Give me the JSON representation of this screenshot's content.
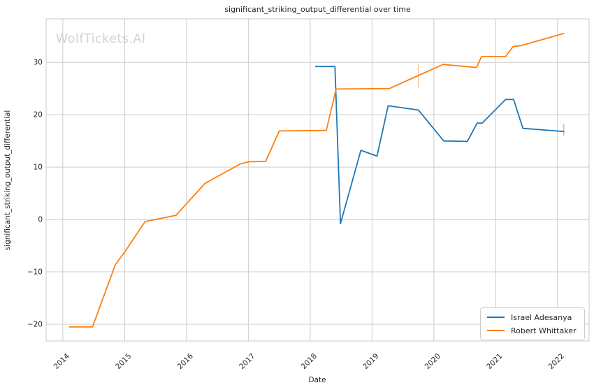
{
  "chart_data": {
    "type": "line",
    "title": "significant_striking_output_differential over time",
    "xlabel": "Date",
    "ylabel": "significant_striking_output_differential",
    "watermark": "WolfTickets.AI",
    "grid": true,
    "legend_position": "lower right",
    "xlim": [
      2013.73,
      2022.51
    ],
    "ylim": [
      -23.2,
      38.3
    ],
    "x_ticks": [
      {
        "value": 2014,
        "label": "2014"
      },
      {
        "value": 2015,
        "label": "2015"
      },
      {
        "value": 2016,
        "label": "2016"
      },
      {
        "value": 2017,
        "label": "2017"
      },
      {
        "value": 2018,
        "label": "2018"
      },
      {
        "value": 2019,
        "label": "2019"
      },
      {
        "value": 2020,
        "label": "2020"
      },
      {
        "value": 2021,
        "label": "2021"
      },
      {
        "value": 2022,
        "label": "2022"
      }
    ],
    "y_ticks": [
      {
        "value": -20,
        "label": "−20"
      },
      {
        "value": -10,
        "label": "−10"
      },
      {
        "value": 0,
        "label": "0"
      },
      {
        "value": 10,
        "label": "10"
      },
      {
        "value": 20,
        "label": "20"
      },
      {
        "value": 30,
        "label": "30"
      }
    ],
    "colors": {
      "grid": "#cccccc",
      "spine": "#c9c9c9",
      "text": "#262626",
      "watermark": "#d2d2d2",
      "background": "#ffffff"
    },
    "series": [
      {
        "name": "Israel Adesanya",
        "color": "#1f77b4",
        "points": [
          [
            2018.09,
            29.2
          ],
          [
            2018.4,
            29.2
          ],
          [
            2018.49,
            -0.8
          ],
          [
            2018.82,
            13.2
          ],
          [
            2019.08,
            12.1
          ],
          [
            2019.26,
            21.7
          ],
          [
            2019.75,
            20.9
          ],
          [
            2020.16,
            15.0
          ],
          [
            2020.54,
            14.9
          ],
          [
            2020.7,
            18.4
          ],
          [
            2020.78,
            18.4
          ],
          [
            2021.16,
            22.9
          ],
          [
            2021.29,
            22.9
          ],
          [
            2021.44,
            17.4
          ],
          [
            2022.1,
            16.8
          ]
        ],
        "error_bar": {
          "x": 2022.1,
          "low": 16.0,
          "high": 18.3
        }
      },
      {
        "name": "Robert Whittaker",
        "color": "#ff7f0e",
        "points": [
          [
            2014.11,
            -20.5
          ],
          [
            2014.48,
            -20.5
          ],
          [
            2014.85,
            -8.6
          ],
          [
            2015.0,
            -6.2
          ],
          [
            2015.33,
            -0.4
          ],
          [
            2015.83,
            0.8
          ],
          [
            2016.3,
            6.9
          ],
          [
            2016.87,
            10.6
          ],
          [
            2017.0,
            11.0
          ],
          [
            2017.28,
            11.1
          ],
          [
            2017.5,
            16.9
          ],
          [
            2018.26,
            17.0
          ],
          [
            2018.42,
            24.9
          ],
          [
            2019.28,
            25.0
          ],
          [
            2019.75,
            27.5
          ],
          [
            2020.15,
            29.6
          ],
          [
            2020.69,
            29.0
          ],
          [
            2020.77,
            31.1
          ],
          [
            2021.16,
            31.1
          ],
          [
            2021.28,
            33.0
          ],
          [
            2021.41,
            33.2
          ],
          [
            2022.1,
            35.5
          ]
        ],
        "error_bar": {
          "x": 2019.75,
          "low": 25.0,
          "high": 29.7
        }
      }
    ]
  }
}
